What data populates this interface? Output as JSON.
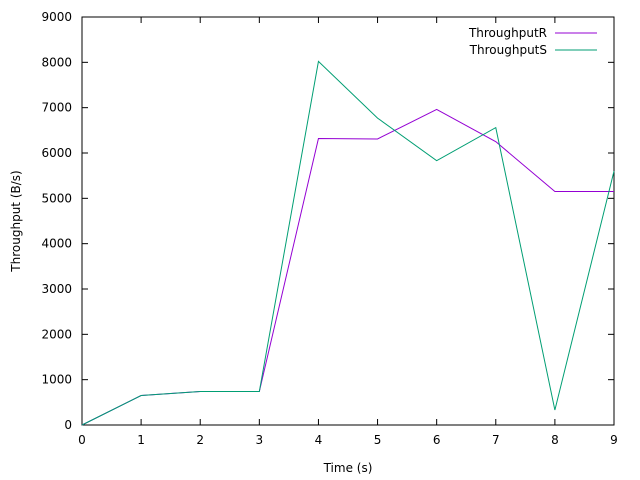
{
  "chart_data": {
    "type": "line",
    "xlabel": "Time (s)",
    "ylabel": "Throughput (B/s)",
    "xlim": [
      0,
      9
    ],
    "ylim": [
      0,
      9000
    ],
    "xticks": [
      0,
      1,
      2,
      3,
      4,
      5,
      6,
      7,
      8,
      9
    ],
    "yticks": [
      0,
      1000,
      2000,
      3000,
      4000,
      5000,
      6000,
      7000,
      8000,
      9000
    ],
    "grid": false,
    "legend_position": "top-right",
    "x": [
      0,
      1,
      2,
      3,
      4,
      5,
      6,
      7,
      8,
      9
    ],
    "series": [
      {
        "name": "ThroughputR",
        "color": "#9400d3",
        "values": [
          0,
          650,
          740,
          740,
          6320,
          6310,
          6960,
          6250,
          5150,
          5150
        ]
      },
      {
        "name": "ThroughputS",
        "color": "#009e73",
        "values": [
          0,
          650,
          740,
          740,
          8020,
          6770,
          5830,
          6560,
          330,
          5600
        ]
      }
    ]
  }
}
